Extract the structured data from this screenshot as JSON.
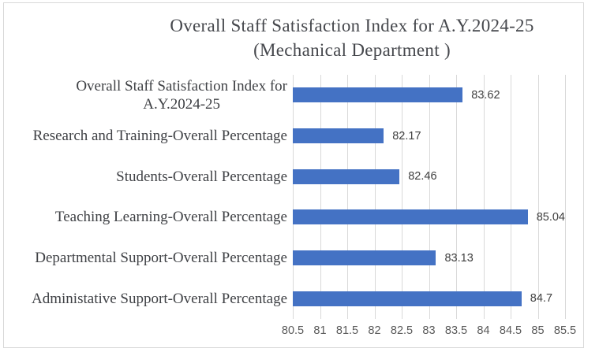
{
  "header": {
    "title_line1": "Overall Staff Satisfaction Index for A.Y.2024-25",
    "title_line2": "(Mechanical Department )"
  },
  "chart_data": {
    "type": "bar",
    "orientation": "horizontal",
    "title": "Overall Staff Satisfaction Index for A.Y.2024-25 (Mechanical Department )",
    "categories": [
      "Overall Staff Satisfaction Index for\nA.Y.2024-25",
      "Research and Training-Overall Percentage",
      "Students-Overall Percentage",
      "Teaching Learning-Overall Percentage",
      "Departmental Support-Overall Percentage",
      "Administative Support-Overall Percentage"
    ],
    "values": [
      83.62,
      82.17,
      82.46,
      85.04,
      83.13,
      84.7
    ],
    "value_labels": [
      "83.62",
      "82.17",
      "82.46",
      "85.04",
      "83.13",
      "84.7"
    ],
    "xlim": [
      80.5,
      85.5
    ],
    "xticks": [
      80.5,
      81,
      81.5,
      82,
      82.5,
      83,
      83.5,
      84,
      84.5,
      85,
      85.5
    ],
    "xtick_labels": [
      "80.5",
      "81",
      "81.5",
      "82",
      "82.5",
      "83",
      "83.5",
      "84",
      "84.5",
      "85",
      "85.5"
    ],
    "grid": true,
    "legend": false,
    "bar_color": "#4472C4",
    "gridline_color": "#D9D9D9",
    "chart_border_color": "#D9D9D9",
    "label_color": "#3F4145",
    "tick_label_color": "#595959",
    "value_label_color": "#3F3F3F"
  }
}
